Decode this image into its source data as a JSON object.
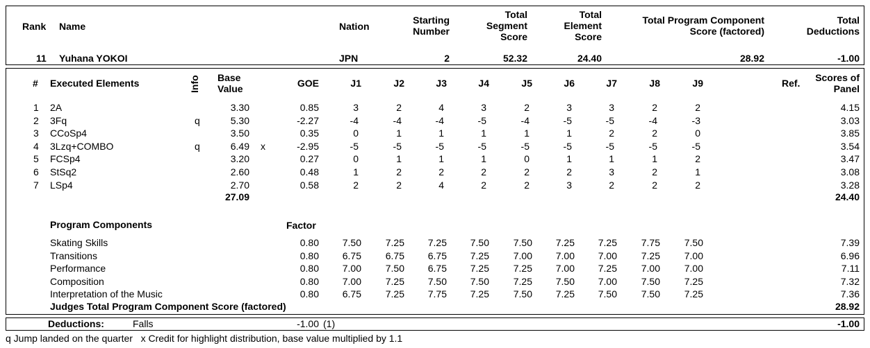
{
  "header": {
    "rank_label": "Rank",
    "name_label": "Name",
    "nation_label": "Nation",
    "starting_number_label": [
      "Starting",
      "Number"
    ],
    "total_segment_label": [
      "Total",
      "Segment",
      "Score"
    ],
    "total_element_label": [
      "Total",
      "Element",
      "Score"
    ],
    "total_pcs_label": [
      "Total Program Component",
      "Score (factored)"
    ],
    "total_deductions_label": [
      "Total",
      "Deductions"
    ]
  },
  "skater": {
    "rank": "11",
    "name": "Yuhana YOKOI",
    "nation": "JPN",
    "starting_number": "2",
    "total_segment_score": "52.32",
    "total_element_score": "24.40",
    "total_pcs": "28.92",
    "total_deductions": "-1.00"
  },
  "elements_header": {
    "num": "#",
    "executed": "Executed Elements",
    "info": "Info",
    "base_value": [
      "Base",
      "Value"
    ],
    "goe": "GOE",
    "judges": [
      "J1",
      "J2",
      "J3",
      "J4",
      "J5",
      "J6",
      "J7",
      "J8",
      "J9"
    ],
    "ref": "Ref.",
    "scores_of_panel": [
      "Scores of",
      "Panel"
    ]
  },
  "elements": [
    {
      "num": "1",
      "name": "2A",
      "info": "",
      "base": "3.30",
      "x": "",
      "goe": "0.85",
      "judges": [
        "3",
        "2",
        "4",
        "3",
        "2",
        "3",
        "3",
        "2",
        "2"
      ],
      "panel": "4.15"
    },
    {
      "num": "2",
      "name": "3Fq",
      "info": "q",
      "base": "5.30",
      "x": "",
      "goe": "-2.27",
      "judges": [
        "-4",
        "-4",
        "-4",
        "-5",
        "-4",
        "-5",
        "-5",
        "-4",
        "-3"
      ],
      "panel": "3.03"
    },
    {
      "num": "3",
      "name": "CCoSp4",
      "info": "",
      "base": "3.50",
      "x": "",
      "goe": "0.35",
      "judges": [
        "0",
        "1",
        "1",
        "1",
        "1",
        "1",
        "2",
        "2",
        "0"
      ],
      "panel": "3.85"
    },
    {
      "num": "4",
      "name": "3Lzq+COMBO",
      "info": "q",
      "base": "6.49",
      "x": "x",
      "goe": "-2.95",
      "judges": [
        "-5",
        "-5",
        "-5",
        "-5",
        "-5",
        "-5",
        "-5",
        "-5",
        "-5"
      ],
      "panel": "3.54"
    },
    {
      "num": "5",
      "name": "FCSp4",
      "info": "",
      "base": "3.20",
      "x": "",
      "goe": "0.27",
      "judges": [
        "0",
        "1",
        "1",
        "1",
        "0",
        "1",
        "1",
        "1",
        "2"
      ],
      "panel": "3.47"
    },
    {
      "num": "6",
      "name": "StSq2",
      "info": "",
      "base": "2.60",
      "x": "",
      "goe": "0.48",
      "judges": [
        "1",
        "2",
        "2",
        "2",
        "2",
        "2",
        "3",
        "2",
        "1"
      ],
      "panel": "3.08"
    },
    {
      "num": "7",
      "name": "LSp4",
      "info": "",
      "base": "2.70",
      "x": "",
      "goe": "0.58",
      "judges": [
        "2",
        "2",
        "4",
        "2",
        "2",
        "3",
        "2",
        "2",
        "2"
      ],
      "panel": "3.28"
    }
  ],
  "elements_totals": {
    "base": "27.09",
    "panel": "24.40"
  },
  "pc_header": {
    "title": "Program Components",
    "factor": "Factor"
  },
  "components": [
    {
      "name": "Skating Skills",
      "factor": "0.80",
      "judges": [
        "7.50",
        "7.25",
        "7.25",
        "7.50",
        "7.50",
        "7.25",
        "7.25",
        "7.75",
        "7.50"
      ],
      "panel": "7.39"
    },
    {
      "name": "Transitions",
      "factor": "0.80",
      "judges": [
        "6.75",
        "6.75",
        "6.75",
        "7.25",
        "7.00",
        "7.00",
        "7.00",
        "7.25",
        "7.00"
      ],
      "panel": "6.96"
    },
    {
      "name": "Performance",
      "factor": "0.80",
      "judges": [
        "7.00",
        "7.50",
        "6.75",
        "7.25",
        "7.25",
        "7.00",
        "7.25",
        "7.00",
        "7.00"
      ],
      "panel": "7.11"
    },
    {
      "name": "Composition",
      "factor": "0.80",
      "judges": [
        "7.00",
        "7.25",
        "7.50",
        "7.50",
        "7.25",
        "7.50",
        "7.00",
        "7.50",
        "7.25"
      ],
      "panel": "7.32"
    },
    {
      "name": "Interpretation of the Music",
      "factor": "0.80",
      "judges": [
        "6.75",
        "7.25",
        "7.75",
        "7.25",
        "7.50",
        "7.25",
        "7.50",
        "7.50",
        "7.25"
      ],
      "panel": "7.36"
    }
  ],
  "pc_total": {
    "label": "Judges Total Program Component Score (factored)",
    "value": "28.92"
  },
  "deductions": {
    "label": "Deductions:",
    "type": "Falls",
    "value": "-1.00",
    "count": "(1)",
    "total": "-1.00"
  },
  "footnote": "q Jump landed on the quarter   x Credit for highlight distribution, base value multiplied by 1.1"
}
